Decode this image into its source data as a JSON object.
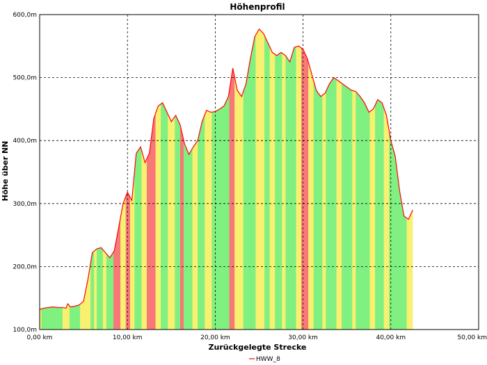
{
  "chart_data": {
    "type": "area",
    "title": "Höhenprofil",
    "xlabel": "Zurückgelegte Strecke",
    "ylabel": "Höhe über NN",
    "xlim": [
      0,
      50
    ],
    "ylim": [
      100,
      600
    ],
    "x_ticks": [
      "0,00 km",
      "10,00 km",
      "20,00 km",
      "30,00 km",
      "40,00 km",
      "50,00 km"
    ],
    "x_tick_values": [
      0,
      10,
      20,
      30,
      40,
      50
    ],
    "y_ticks": [
      "100,0m",
      "200,0m",
      "300,0m",
      "400,0m",
      "500,0m",
      "600,0m"
    ],
    "y_tick_values": [
      100,
      200,
      300,
      400,
      500,
      600
    ],
    "grid": true,
    "legend": {
      "position": "bottom",
      "entries": [
        "HWW_8"
      ]
    },
    "colors": {
      "profile_line": "#ff0000",
      "flat": "#80f080",
      "medium": "#f8f070",
      "steep": "#f87878",
      "frame": "#000000"
    },
    "series": [
      {
        "name": "HWW_8",
        "x": [
          0,
          0.5,
          1.0,
          1.5,
          2.0,
          2.5,
          3.0,
          3.2,
          3.5,
          4.0,
          4.5,
          5.0,
          5.5,
          6.0,
          6.5,
          7.0,
          7.5,
          8.0,
          8.5,
          9.0,
          9.5,
          10.0,
          10.5,
          11.0,
          11.5,
          12.0,
          12.5,
          13.0,
          13.5,
          14.0,
          14.5,
          15.0,
          15.5,
          16.0,
          16.5,
          17.0,
          17.5,
          18.0,
          18.5,
          19.0,
          19.5,
          20.0,
          20.5,
          21.0,
          21.5,
          22.0,
          22.5,
          23.0,
          23.5,
          24.0,
          24.5,
          25.0,
          25.5,
          26.0,
          26.5,
          27.0,
          27.5,
          28.0,
          28.5,
          29.0,
          29.5,
          30.0,
          30.5,
          31.0,
          31.5,
          32.0,
          32.5,
          33.0,
          33.5,
          34.0,
          34.5,
          35.0,
          35.5,
          36.0,
          36.5,
          37.0,
          37.5,
          38.0,
          38.5,
          39.0,
          39.5,
          40.0,
          40.5,
          41.0,
          41.5,
          42.0,
          42.5
        ],
        "values": [
          132,
          134,
          135,
          136,
          135,
          135,
          134,
          141,
          136,
          137,
          139,
          145,
          180,
          222,
          228,
          230,
          222,
          214,
          225,
          262,
          300,
          318,
          305,
          380,
          390,
          365,
          380,
          435,
          455,
          460,
          445,
          430,
          440,
          425,
          395,
          378,
          390,
          400,
          430,
          448,
          445,
          446,
          450,
          455,
          470,
          515,
          480,
          470,
          490,
          530,
          565,
          577,
          570,
          555,
          540,
          535,
          540,
          535,
          525,
          548,
          550,
          545,
          530,
          505,
          480,
          470,
          475,
          490,
          500,
          495,
          490,
          485,
          480,
          478,
          470,
          460,
          445,
          450,
          465,
          460,
          440,
          400,
          375,
          320,
          280,
          275,
          290
        ]
      }
    ],
    "slope_bands": [
      {
        "from": 0,
        "to": 0.2,
        "class": "medium"
      },
      {
        "from": 0.2,
        "to": 2.6,
        "class": "flat"
      },
      {
        "from": 2.6,
        "to": 3.4,
        "class": "medium"
      },
      {
        "from": 3.4,
        "to": 4.6,
        "class": "flat"
      },
      {
        "from": 4.6,
        "to": 5.8,
        "class": "medium"
      },
      {
        "from": 5.8,
        "to": 6.2,
        "class": "flat"
      },
      {
        "from": 6.2,
        "to": 6.5,
        "class": "medium"
      },
      {
        "from": 6.5,
        "to": 7.2,
        "class": "flat"
      },
      {
        "from": 7.2,
        "to": 7.6,
        "class": "medium"
      },
      {
        "from": 7.6,
        "to": 8.4,
        "class": "flat"
      },
      {
        "from": 8.4,
        "to": 9.2,
        "class": "steep"
      },
      {
        "from": 9.2,
        "to": 9.8,
        "class": "medium"
      },
      {
        "from": 9.8,
        "to": 10.3,
        "class": "steep"
      },
      {
        "from": 10.3,
        "to": 10.8,
        "class": "medium"
      },
      {
        "from": 10.8,
        "to": 11.6,
        "class": "flat"
      },
      {
        "from": 11.6,
        "to": 12.2,
        "class": "medium"
      },
      {
        "from": 12.2,
        "to": 13.2,
        "class": "steep"
      },
      {
        "from": 13.2,
        "to": 13.8,
        "class": "medium"
      },
      {
        "from": 13.8,
        "to": 14.6,
        "class": "flat"
      },
      {
        "from": 14.6,
        "to": 15.4,
        "class": "medium"
      },
      {
        "from": 15.4,
        "to": 16.0,
        "class": "flat"
      },
      {
        "from": 16.0,
        "to": 16.4,
        "class": "steep"
      },
      {
        "from": 16.4,
        "to": 17.4,
        "class": "flat"
      },
      {
        "from": 17.4,
        "to": 18.0,
        "class": "medium"
      },
      {
        "from": 18.0,
        "to": 18.8,
        "class": "flat"
      },
      {
        "from": 18.8,
        "to": 19.6,
        "class": "medium"
      },
      {
        "from": 19.6,
        "to": 21.6,
        "class": "flat"
      },
      {
        "from": 21.6,
        "to": 22.2,
        "class": "steep"
      },
      {
        "from": 22.2,
        "to": 23.2,
        "class": "medium"
      },
      {
        "from": 23.2,
        "to": 24.6,
        "class": "flat"
      },
      {
        "from": 24.6,
        "to": 25.6,
        "class": "medium"
      },
      {
        "from": 25.6,
        "to": 26.2,
        "class": "flat"
      },
      {
        "from": 26.2,
        "to": 26.8,
        "class": "medium"
      },
      {
        "from": 26.8,
        "to": 27.6,
        "class": "flat"
      },
      {
        "from": 27.6,
        "to": 28.0,
        "class": "medium"
      },
      {
        "from": 28.0,
        "to": 29.2,
        "class": "flat"
      },
      {
        "from": 29.2,
        "to": 29.8,
        "class": "medium"
      },
      {
        "from": 29.8,
        "to": 30.6,
        "class": "steep"
      },
      {
        "from": 30.6,
        "to": 31.2,
        "class": "medium"
      },
      {
        "from": 31.2,
        "to": 32.2,
        "class": "flat"
      },
      {
        "from": 32.2,
        "to": 32.6,
        "class": "medium"
      },
      {
        "from": 32.6,
        "to": 33.8,
        "class": "flat"
      },
      {
        "from": 33.8,
        "to": 34.4,
        "class": "medium"
      },
      {
        "from": 34.4,
        "to": 35.6,
        "class": "flat"
      },
      {
        "from": 35.6,
        "to": 36.0,
        "class": "medium"
      },
      {
        "from": 36.0,
        "to": 37.6,
        "class": "flat"
      },
      {
        "from": 37.6,
        "to": 38.2,
        "class": "medium"
      },
      {
        "from": 38.2,
        "to": 39.2,
        "class": "flat"
      },
      {
        "from": 39.2,
        "to": 39.8,
        "class": "medium"
      },
      {
        "from": 39.8,
        "to": 40.8,
        "class": "flat"
      },
      {
        "from": 40.8,
        "to": 41.8,
        "class": "flat"
      },
      {
        "from": 41.8,
        "to": 42.5,
        "class": "medium"
      }
    ]
  }
}
